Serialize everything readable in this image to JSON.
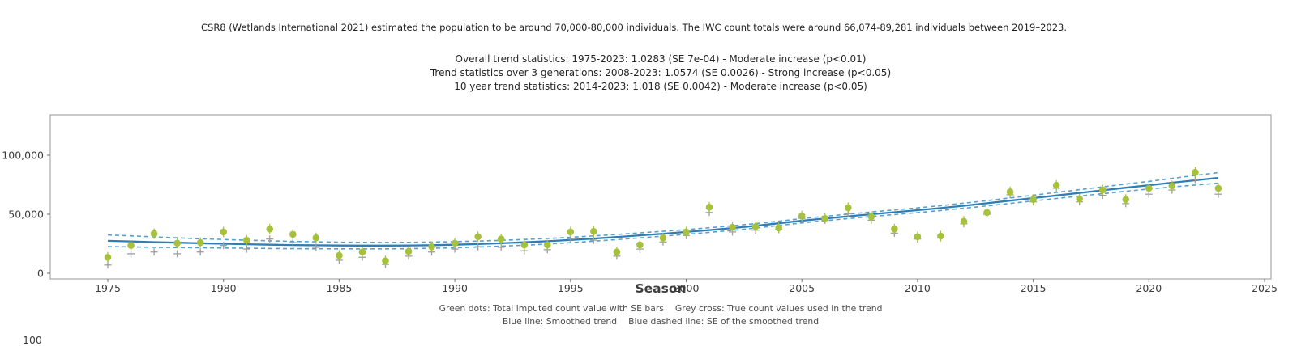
{
  "header": {
    "title": "CSR8 (Wetlands International 2021) estimated the population to be around 70,000-80,000 individuals. The IWC count totals were around 66,074-89,281 individuals between 2019–2023.",
    "stats_lines": [
      "Overall trend statistics: 1975-2023: 1.0283 (SE 7e-04) - Moderate increase (p<0.01)",
      "Trend statistics over 3 generations: 2008-2023: 1.0574 (SE 0.0026) - Strong increase (p<0.05)",
      "10 year trend statistics: 2014-2023: 1.018 (SE 0.0042) - Moderate increase (p<0.05)"
    ]
  },
  "axes": {
    "x_label": "Season",
    "x_ticks": [
      "1975",
      "1980",
      "1985",
      "1990",
      "1995",
      "2000",
      "2005",
      "2010",
      "2015",
      "2020",
      "2025"
    ],
    "y_ticks": [
      "0",
      "50,000",
      "100,000"
    ]
  },
  "legend": {
    "dots": "Green dots: Total imputed count value with SE bars",
    "cross": "Grey cross: True count values used in the trend",
    "line": "Blue line: Smoothed trend",
    "dashed": "Blue dashed line: SE of the smoothed trend"
  },
  "partial_bottom_label": "100",
  "colors": {
    "dot_green": "#a6c13b",
    "cross_grey": "#9e9e9e",
    "trend_blue": "#2e7eb5",
    "se_dashed_blue": "#57a0cd",
    "spine_grey": "#a6a6a6",
    "tick_text": "#3d3d3d"
  },
  "chart_data": {
    "type": "scatter",
    "xlabel": "Season",
    "ylabel": "",
    "xlim": [
      1972.5,
      2025.3
    ],
    "ylim": [
      -5000,
      134000
    ],
    "grid": false,
    "legend_position": "below",
    "x_tick_values": [
      1975,
      1980,
      1985,
      1990,
      1995,
      2000,
      2005,
      2010,
      2015,
      2020,
      2025
    ],
    "y_tick_values": [
      0,
      50000,
      100000
    ],
    "x": [
      1975,
      1976,
      1977,
      1978,
      1979,
      1980,
      1981,
      1982,
      1983,
      1984,
      1985,
      1986,
      1987,
      1988,
      1989,
      1990,
      1991,
      1992,
      1993,
      1994,
      1995,
      1996,
      1997,
      1998,
      1999,
      2000,
      2001,
      2002,
      2003,
      2004,
      2005,
      2006,
      2007,
      2008,
      2009,
      2010,
      2011,
      2012,
      2013,
      2014,
      2015,
      2016,
      2017,
      2018,
      2019,
      2020,
      2021,
      2022,
      2023
    ],
    "series": [
      {
        "name": "Total imputed count value (green dots)",
        "style": "green-dot",
        "values": [
          13500,
          23500,
          33500,
          25500,
          26000,
          35000,
          28000,
          37500,
          33000,
          30000,
          15000,
          18000,
          10500,
          18500,
          22500,
          25500,
          31000,
          29000,
          24000,
          24000,
          35000,
          35500,
          18000,
          24000,
          30000,
          35000,
          56000,
          39000,
          39500,
          38500,
          48500,
          46500,
          55500,
          48000,
          37500,
          31000,
          31500,
          44000,
          51500,
          69000,
          62500,
          74500,
          63000,
          70500,
          62500,
          72000,
          74000,
          85500,
          72000
        ]
      },
      {
        "name": "True count values used in the trend (grey cross)",
        "style": "grey-cross",
        "values": [
          7000,
          16500,
          18000,
          16500,
          18000,
          23500,
          20500,
          29000,
          26000,
          22000,
          11000,
          13500,
          7500,
          14500,
          18000,
          20500,
          22500,
          22000,
          19000,
          20000,
          29000,
          28000,
          14500,
          20500,
          26500,
          32000,
          51500,
          35000,
          36500,
          37000,
          46500,
          45000,
          50500,
          45000,
          34000,
          29000,
          30000,
          42000,
          50000,
          66500,
          60500,
          72000,
          60500,
          66000,
          59000,
          67000,
          70500,
          79500,
          67000
        ]
      },
      {
        "name": "Smoothed trend (blue line)",
        "style": "blue-line",
        "values": [
          27500,
          27000,
          26400,
          25900,
          25400,
          25000,
          24600,
          24200,
          23900,
          23700,
          23500,
          23400,
          23400,
          23500,
          23800,
          24200,
          24700,
          25400,
          26200,
          27100,
          28200,
          29400,
          30700,
          32100,
          33500,
          35000,
          36600,
          38300,
          40200,
          42300,
          44500,
          46400,
          48200,
          50000,
          51700,
          53400,
          55200,
          57200,
          59300,
          61500,
          63700,
          65900,
          68100,
          70300,
          72500,
          74600,
          76700,
          78800,
          80800
        ]
      },
      {
        "name": "SE of the smoothed trend, half-width (blue dashed band)",
        "style": "blue-dashed",
        "values": [
          5000,
          4700,
          4400,
          4100,
          3800,
          3600,
          3400,
          3250,
          3100,
          2950,
          2800,
          2750,
          2700,
          2650,
          2620,
          2600,
          2540,
          2480,
          2420,
          2360,
          2300,
          2240,
          2180,
          2120,
          2060,
          2000,
          1960,
          1920,
          1880,
          1840,
          1800,
          1840,
          1880,
          1920,
          1960,
          2000,
          2080,
          2160,
          2240,
          2320,
          2400,
          2560,
          2720,
          2880,
          3040,
          3200,
          3630,
          4070,
          4500
        ]
      }
    ]
  }
}
